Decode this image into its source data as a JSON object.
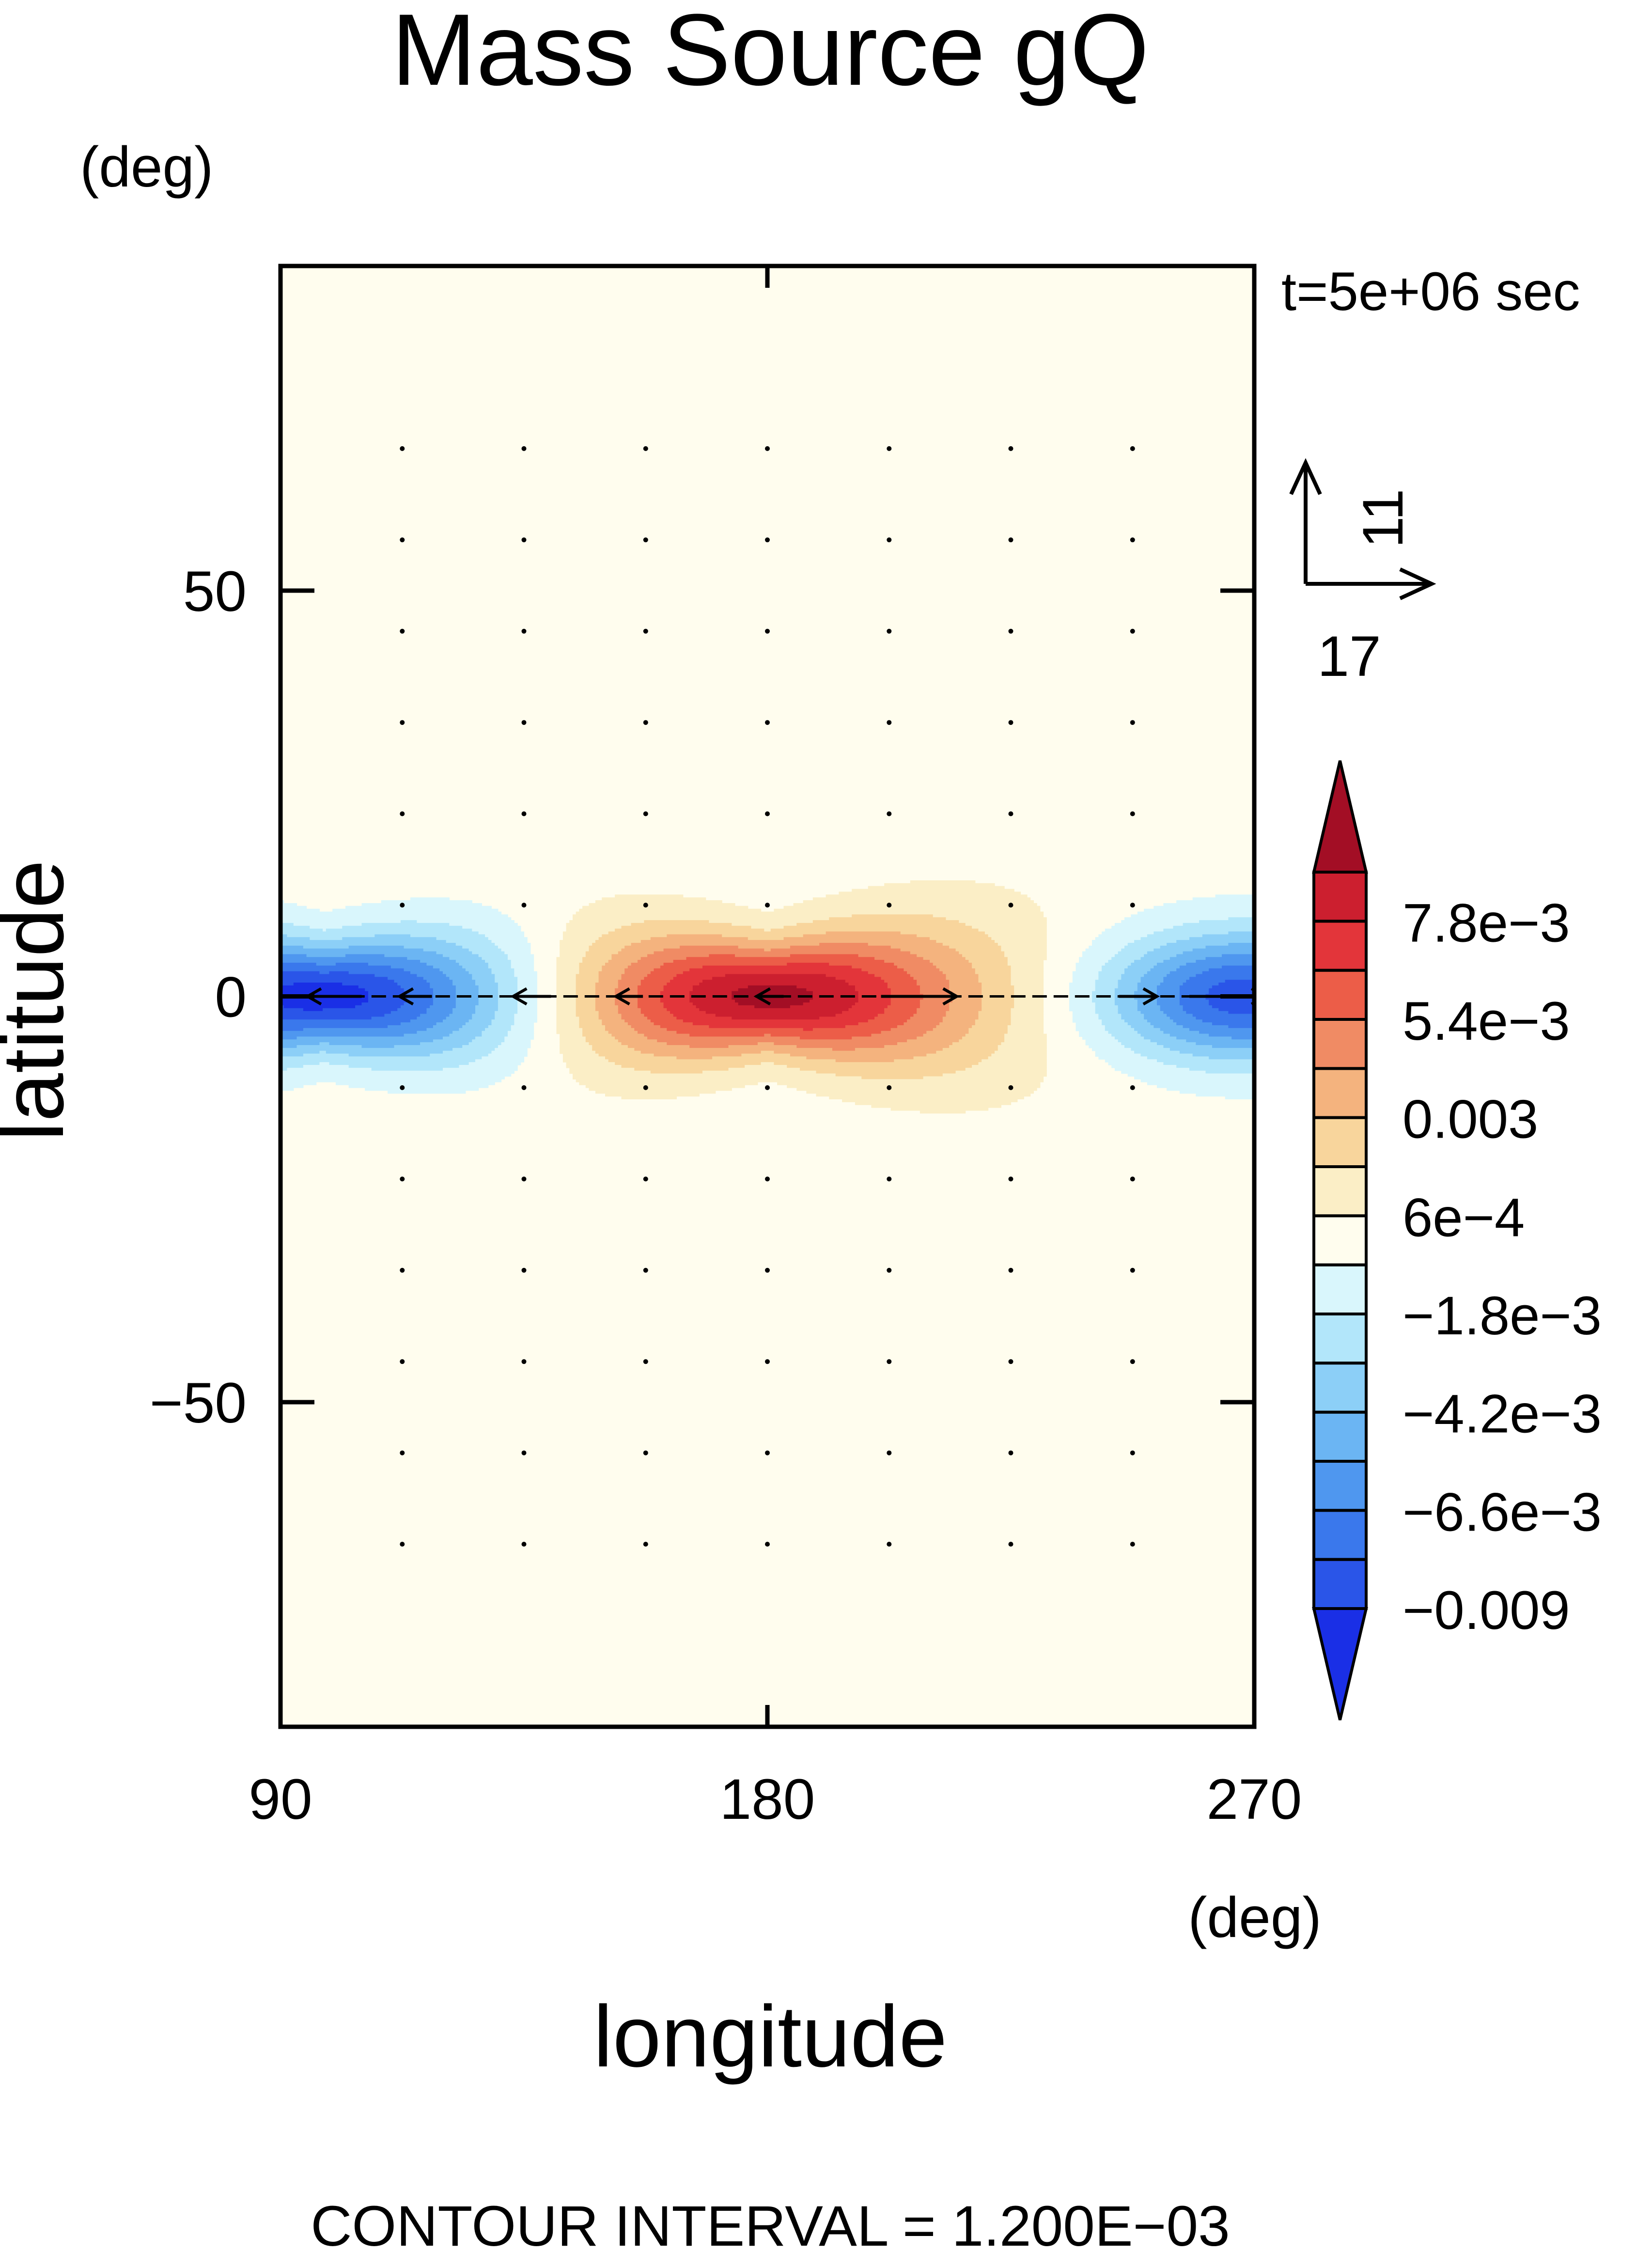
{
  "chart_data": {
    "type": "heatmap",
    "title": "Mass Source gQ",
    "xlabel": "longitude",
    "ylabel": "latitude",
    "x_unit": "(deg)",
    "y_unit": "(deg)",
    "xlim": [
      90,
      270
    ],
    "ylim": [
      -90,
      90
    ],
    "x_ticks": [
      90,
      180,
      270
    ],
    "x_tick_labels": [
      "90",
      "180",
      "270"
    ],
    "y_ticks": [
      50,
      0,
      -50
    ],
    "y_tick_labels": [
      "50",
      "0",
      "−50"
    ],
    "time_label": "t=5e+06 sec",
    "footer": "CONTOUR INTERVAL = 1.200E−03",
    "contour_interval": 0.0012,
    "grid": false,
    "vector_reference": {
      "u_label": "17",
      "v_label": "11"
    },
    "colorbar": {
      "levels": [
        -0.009,
        -0.0078,
        -0.0066,
        -0.0054,
        -0.0042,
        -0.003,
        -0.0018,
        -0.0006,
        0.0006,
        0.0018,
        0.003,
        0.0042,
        0.0054,
        0.0066,
        0.0078,
        0.009
      ],
      "colors": [
        "#1a2fe6",
        "#2a55e8",
        "#3a78ec",
        "#4f97ef",
        "#6bb5f3",
        "#8ccff7",
        "#b2e6fa",
        "#d9f6fc",
        "#fffdee",
        "#fbeec6",
        "#f8d59c",
        "#f4b37e",
        "#f08b64",
        "#ec5d48",
        "#e3353a",
        "#cc1f2f",
        "#a30e25"
      ],
      "tick_labels": [
        "−0.009",
        "−6.6e−3",
        "−4.2e−3",
        "−1.8e−3",
        "6e−4",
        "0.003",
        "5.4e−3",
        "7.8e−3"
      ],
      "tick_values": [
        -0.009,
        -0.0066,
        -0.0042,
        -0.0018,
        0.0006,
        0.003,
        0.0054,
        0.0078
      ]
    },
    "field_features": [
      {
        "name": "positive-maximum",
        "lon": 180,
        "lat": 0,
        "value": 0.009
      },
      {
        "name": "negative-minimum-west",
        "lon": 98,
        "lat": 0,
        "value": -0.009
      },
      {
        "name": "negative-minimum-east",
        "lon": 268,
        "lat": 0,
        "value": -0.008
      }
    ]
  }
}
